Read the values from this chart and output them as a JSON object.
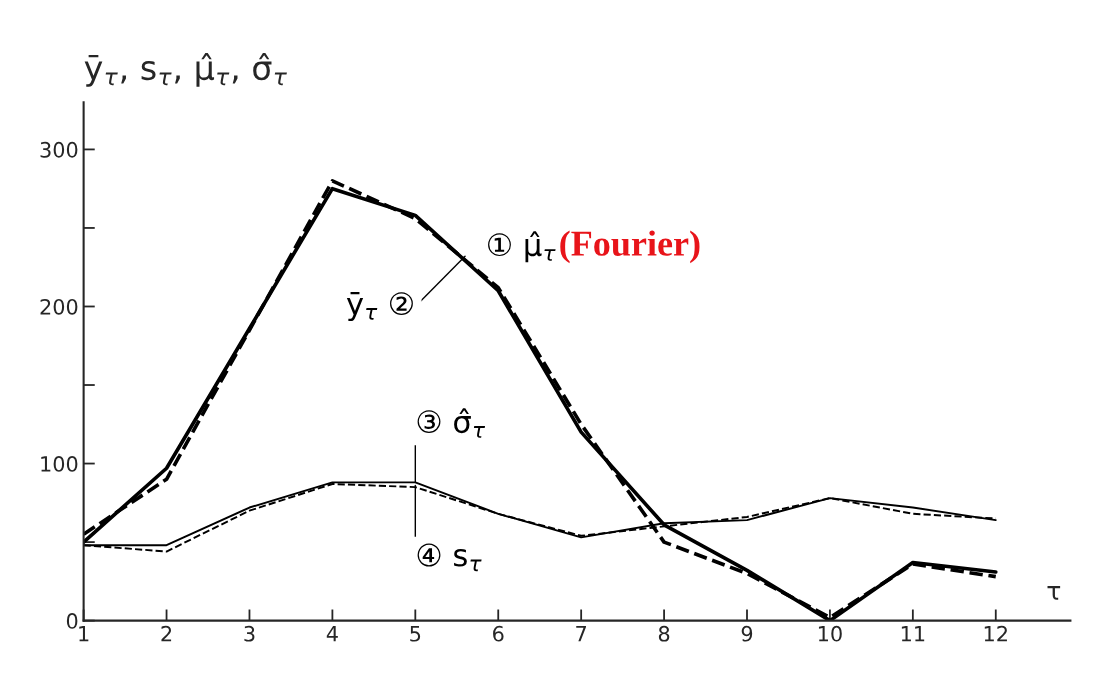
{
  "chart_data": {
    "type": "line",
    "ylabel": "ȳ$_{τ}$, s$_{τ}$, μ̂$_{τ}$, σ̂$_{τ}$",
    "xlabel": "τ",
    "x": [
      1,
      2,
      3,
      4,
      5,
      6,
      7,
      8,
      9,
      10,
      11,
      12
    ],
    "xlim": [
      1,
      12.9
    ],
    "xticks": [
      1,
      2,
      3,
      4,
      5,
      6,
      7,
      8,
      9,
      10,
      11,
      12
    ],
    "ylim": [
      0,
      330
    ],
    "yticks": [
      0,
      {
        "value": 50,
        "label": null
      },
      100,
      {
        "value": 150,
        "label": null
      },
      200,
      {
        "value": 250,
        "label": null
      },
      300
    ],
    "series": [
      {
        "name": "① μ̂$_{τ}$",
        "color": "#000000",
        "line_style": "dashed",
        "values": [
          55,
          90,
          185,
          280,
          256,
          212,
          125,
          50,
          30,
          2,
          36,
          28
        ]
      },
      {
        "name": "ȳ$_{τ}$ ②",
        "color": "#000000",
        "line_style": "solid",
        "values": [
          50,
          97,
          186,
          275,
          258,
          210,
          120,
          61,
          32,
          0,
          37,
          31
        ]
      },
      {
        "name": "③ σ̂$_{τ}$",
        "color": "#000000",
        "line_style": "dashed",
        "values": [
          48,
          44,
          70,
          87,
          85,
          68,
          54,
          60,
          66,
          78,
          68,
          65
        ]
      },
      {
        "name": "④ s$_{τ}$",
        "color": "#000000",
        "line_style": "solid",
        "values": [
          48,
          48,
          72,
          88,
          88,
          68,
          53,
          62,
          64,
          78,
          72,
          64
        ]
      }
    ],
    "annotations": [
      "(Fourier)"
    ],
    "grid": false,
    "legend": false
  }
}
